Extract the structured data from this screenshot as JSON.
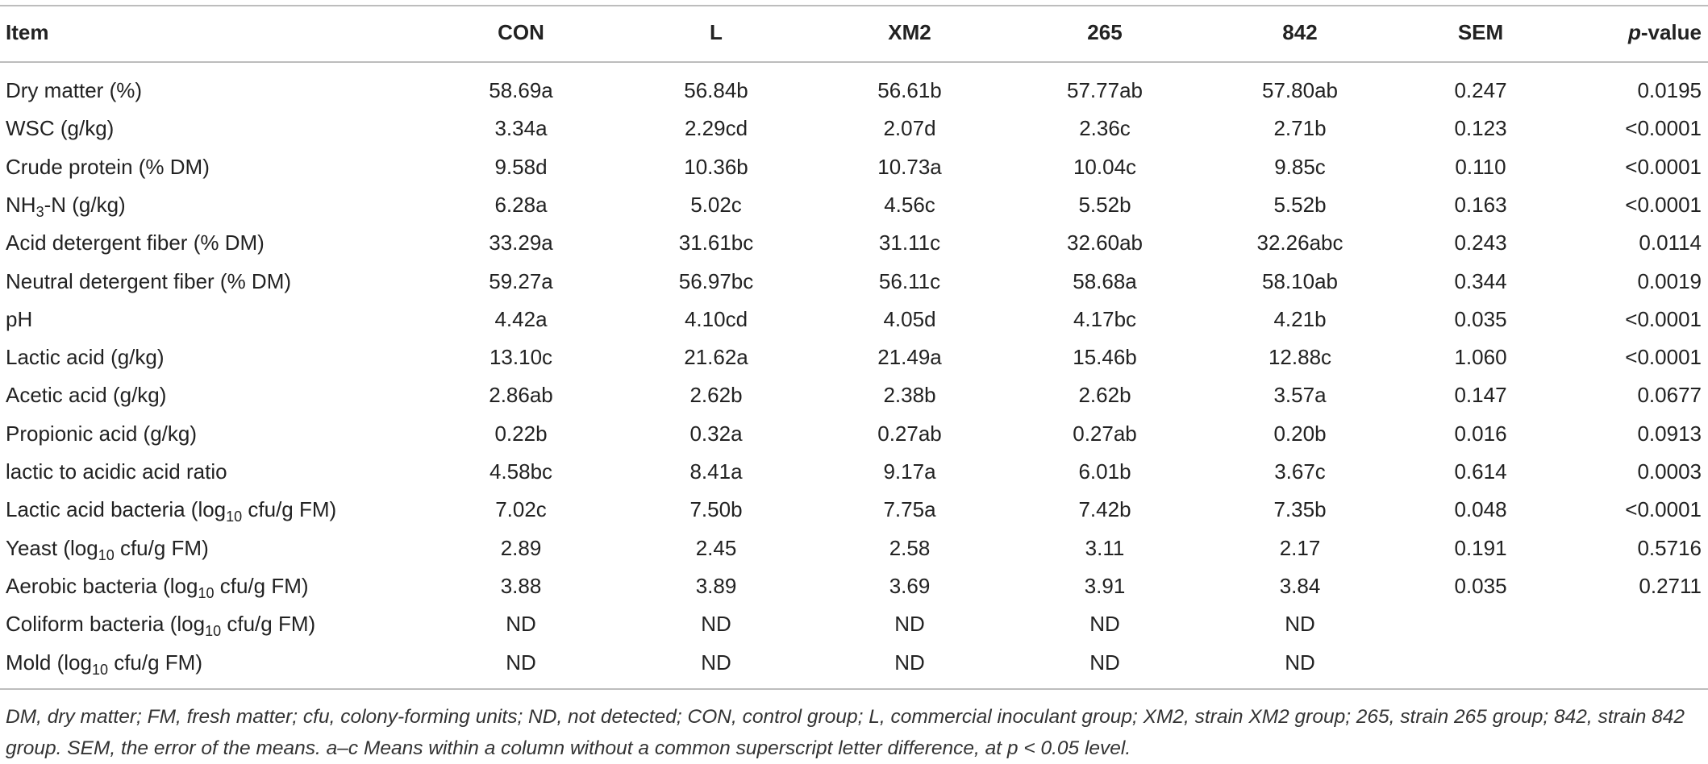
{
  "table": {
    "header": [
      "Item",
      "CON",
      "L",
      "XM2",
      "265",
      "842",
      "SEM",
      [
        "p",
        "-value"
      ]
    ],
    "rows": [
      [
        [
          "Dry matter (%)"
        ],
        "58.69a",
        "56.84b",
        "56.61b",
        "57.77ab",
        "57.80ab",
        "0.247",
        "0.0195"
      ],
      [
        [
          "WSC (g/kg)"
        ],
        "3.34a",
        "2.29cd",
        "2.07d",
        "2.36c",
        "2.71b",
        "0.123",
        "<0.0001"
      ],
      [
        [
          "Crude protein (% DM)"
        ],
        "9.58d",
        "10.36b",
        "10.73a",
        "10.04c",
        "9.85c",
        "0.110",
        "<0.0001"
      ],
      [
        [
          "NH",
          "3",
          "-N (g/kg)"
        ],
        "6.28a",
        "5.02c",
        "4.56c",
        "5.52b",
        "5.52b",
        "0.163",
        "<0.0001"
      ],
      [
        [
          "Acid detergent fiber (% DM)"
        ],
        "33.29a",
        "31.61bc",
        "31.11c",
        "32.60ab",
        "32.26abc",
        "0.243",
        "0.0114"
      ],
      [
        [
          "Neutral detergent fiber (% DM)"
        ],
        "59.27a",
        "56.97bc",
        "56.11c",
        "58.68a",
        "58.10ab",
        "0.344",
        "0.0019"
      ],
      [
        [
          "pH"
        ],
        "4.42a",
        "4.10cd",
        "4.05d",
        "4.17bc",
        "4.21b",
        "0.035",
        "<0.0001"
      ],
      [
        [
          "Lactic acid (g/kg)"
        ],
        "13.10c",
        "21.62a",
        "21.49a",
        "15.46b",
        "12.88c",
        "1.060",
        "<0.0001"
      ],
      [
        [
          "Acetic acid (g/kg)"
        ],
        "2.86ab",
        "2.62b",
        "2.38b",
        "2.62b",
        "3.57a",
        "0.147",
        "0.0677"
      ],
      [
        [
          "Propionic acid (g/kg)"
        ],
        "0.22b",
        "0.32a",
        "0.27ab",
        "0.27ab",
        "0.20b",
        "0.016",
        "0.0913"
      ],
      [
        [
          "lactic to acidic acid ratio"
        ],
        "4.58bc",
        "8.41a",
        "9.17a",
        "6.01b",
        "3.67c",
        "0.614",
        "0.0003"
      ],
      [
        [
          "Lactic acid bacteria (log",
          "10",
          " cfu/g FM)"
        ],
        "7.02c",
        "7.50b",
        "7.75a",
        "7.42b",
        "7.35b",
        "0.048",
        "<0.0001"
      ],
      [
        [
          "Yeast (log",
          "10",
          " cfu/g FM)"
        ],
        "2.89",
        "2.45",
        "2.58",
        "3.11",
        "2.17",
        "0.191",
        "0.5716"
      ],
      [
        [
          "Aerobic bacteria (log",
          "10",
          " cfu/g FM)"
        ],
        "3.88",
        "3.89",
        "3.69",
        "3.91",
        "3.84",
        "0.035",
        "0.2711"
      ],
      [
        [
          "Coliform bacteria (log",
          "10",
          " cfu/g FM)"
        ],
        "ND",
        "ND",
        "ND",
        "ND",
        "ND"
      ],
      [
        [
          "Mold (log",
          "10",
          " cfu/g FM)"
        ],
        "ND",
        "ND",
        "ND",
        "ND",
        "ND"
      ]
    ],
    "footnote": "DM, dry matter; FM, fresh matter; cfu, colony-forming units; ND, not detected; CON, control group; L, commercial inoculant group; XM2, strain XM2 group; 265, strain 265 group; 842, strain 842 group. SEM, the error of the means. a–c Means within a column without a common superscript letter difference, at p < 0.05 level."
  }
}
